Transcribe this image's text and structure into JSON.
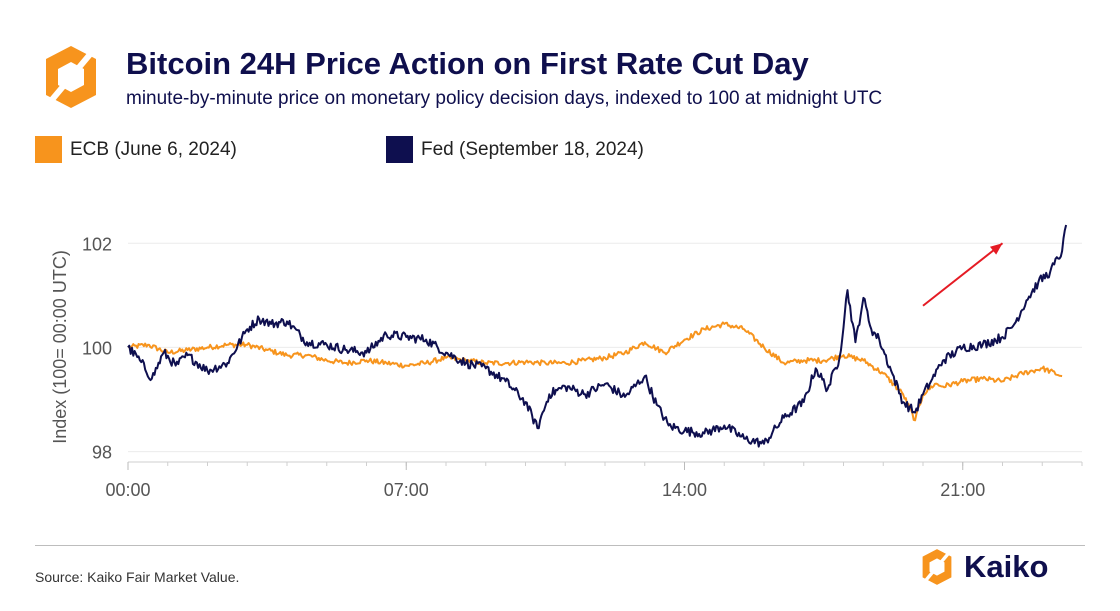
{
  "colors": {
    "ecb": "#F7941D",
    "fed": "#0E0F4F",
    "arrow": "#E51B24",
    "brand": "#F7941D"
  },
  "logo": {
    "name": "Kaiko"
  },
  "source": "Source: Kaiko Fair Market Value.",
  "chart_data": {
    "type": "line",
    "title": "Bitcoin 24H Price Action on First Rate Cut Day",
    "subtitle": "minute-by-minute price on monetary policy decision days, indexed to 100 at midnight UTC",
    "xlabel": "",
    "ylabel": "Index (100= 00:00 UTC)",
    "xlim": [
      0,
      24
    ],
    "ylim": [
      97.8,
      102.6
    ],
    "x_ticks": [
      0,
      7,
      14,
      21
    ],
    "x_tick_labels": [
      "00:00",
      "07:00",
      "14:00",
      "21:00"
    ],
    "y_ticks": [
      98,
      100,
      102
    ],
    "y_tick_labels": [
      "98",
      "100",
      "102"
    ],
    "legend_position": "top-left",
    "annotations": [
      {
        "type": "arrow",
        "from": [
          20.0,
          100.8
        ],
        "to": [
          22.0,
          102.0
        ]
      }
    ],
    "series": [
      {
        "name": "ECB (June 6, 2024)",
        "x": [
          0,
          0.5,
          1,
          1.5,
          2,
          2.5,
          3,
          3.5,
          4,
          4.5,
          5,
          5.5,
          6,
          6.5,
          7,
          7.5,
          8,
          8.5,
          9,
          9.5,
          10,
          10.5,
          11,
          11.5,
          12,
          12.5,
          13,
          13.5,
          14,
          14.5,
          15,
          15.5,
          16,
          16.5,
          17,
          17.5,
          18,
          18.5,
          19,
          19.5,
          19.8,
          20,
          20.3,
          20.5,
          21,
          21.5,
          22,
          22.5,
          23,
          23.5
        ],
        "y": [
          100.0,
          100.05,
          99.9,
          99.95,
          100.0,
          100.05,
          100.05,
          99.95,
          99.85,
          99.85,
          99.75,
          99.7,
          99.75,
          99.7,
          99.65,
          99.7,
          99.8,
          99.75,
          99.7,
          99.7,
          99.72,
          99.7,
          99.7,
          99.75,
          99.8,
          99.9,
          100.1,
          99.9,
          100.15,
          100.35,
          100.45,
          100.35,
          100.0,
          99.7,
          99.75,
          99.75,
          99.85,
          99.75,
          99.5,
          99.1,
          98.6,
          99.1,
          99.3,
          99.25,
          99.35,
          99.4,
          99.35,
          99.5,
          99.6,
          99.45
        ]
      },
      {
        "name": "Fed (September 18, 2024)",
        "x": [
          0,
          0.3,
          0.6,
          0.9,
          1.2,
          1.5,
          2,
          2.5,
          3,
          3.3,
          3.6,
          4,
          4.5,
          5,
          5.5,
          6,
          6.5,
          7,
          7.5,
          8,
          8.5,
          9,
          9.5,
          10,
          10.3,
          10.6,
          11,
          11.5,
          12,
          12.5,
          13,
          13.3,
          13.6,
          14,
          14.5,
          15,
          15.5,
          16,
          16.5,
          17,
          17.3,
          17.6,
          17.9,
          18.1,
          18.3,
          18.5,
          18.7,
          18.9,
          19.2,
          19.5,
          19.8,
          20.0,
          20.2,
          20.5,
          21,
          21.5,
          22,
          22.3,
          22.6,
          22.9,
          23.2,
          23.5,
          23.6
        ],
        "y": [
          100.0,
          99.75,
          99.4,
          99.9,
          99.65,
          99.85,
          99.55,
          99.7,
          100.35,
          100.55,
          100.45,
          100.5,
          100.1,
          100.05,
          99.95,
          99.9,
          100.25,
          100.2,
          100.15,
          99.9,
          99.7,
          99.6,
          99.35,
          98.95,
          98.45,
          99.1,
          99.25,
          99.1,
          99.3,
          99.05,
          99.45,
          98.9,
          98.5,
          98.4,
          98.35,
          98.5,
          98.25,
          98.15,
          98.65,
          98.95,
          99.6,
          99.2,
          99.8,
          101.1,
          100.1,
          100.95,
          100.35,
          100.15,
          99.55,
          98.95,
          98.75,
          99.1,
          99.35,
          99.75,
          100.0,
          100.05,
          100.2,
          100.45,
          100.9,
          101.25,
          101.45,
          101.85,
          102.35
        ]
      }
    ]
  }
}
